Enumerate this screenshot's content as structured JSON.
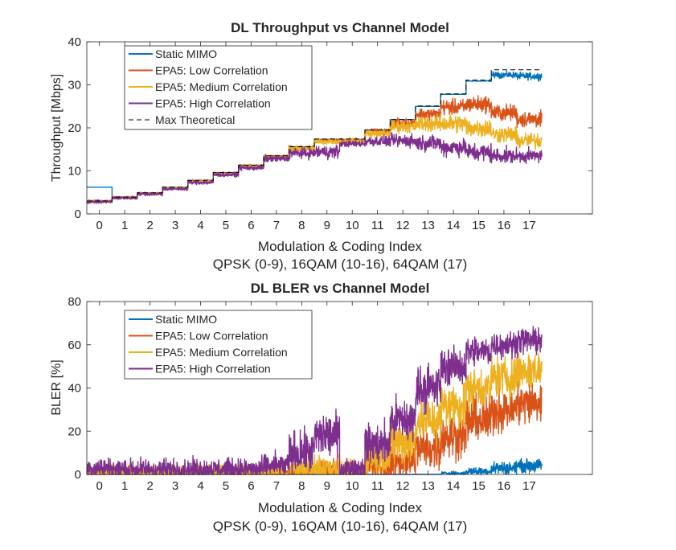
{
  "colors": {
    "static_mimo": "#0072BD",
    "low_corr": "#D95319",
    "medium_corr": "#EDB120",
    "high_corr": "#7E2F8E",
    "max_theoretical": "#000000"
  },
  "chart_data": [
    {
      "type": "line",
      "title": "DL Throughput vs Channel Model",
      "xlabel": "Modulation & Coding Index",
      "xlabel2": "QPSK (0-9), 16QAM (10-16), 64QAM (17)",
      "ylabel": "Throughput [Mbps]",
      "xlim": [
        -0.5,
        19.5
      ],
      "ylim": [
        0,
        40
      ],
      "xticks": [
        "0",
        "1",
        "2",
        "3",
        "4",
        "5",
        "6",
        "7",
        "8",
        "9",
        "10",
        "11",
        "12",
        "13",
        "14",
        "15",
        "16",
        "17"
      ],
      "yticks": [
        "0",
        "10",
        "20",
        "30",
        "40"
      ],
      "grid": false,
      "legend_position": "top-left",
      "series": [
        {
          "name": "Static MIMO",
          "color_key": "static_mimo",
          "mean": [
            6.2,
            3.9,
            4.9,
            6.2,
            7.8,
            9.6,
            11.3,
            13.5,
            15.6,
            17.3,
            17.3,
            19.5,
            21.9,
            25.0,
            27.8,
            30.9,
            32.3,
            32.0
          ],
          "noise": [
            0,
            0,
            0,
            0,
            0,
            0,
            0,
            0,
            0,
            0,
            0,
            0,
            0,
            0,
            0,
            0.1,
            0.6,
            0.7
          ]
        },
        {
          "name": "EPA5: Low Correlation",
          "color_key": "low_corr",
          "mean": [
            3.0,
            3.9,
            4.8,
            6.0,
            7.6,
            9.4,
            11.1,
            13.3,
            15.3,
            17.0,
            17.1,
            19.2,
            21.2,
            23.2,
            24.8,
            25.5,
            23.5,
            22.0
          ],
          "noise": [
            0.2,
            0.2,
            0.2,
            0.2,
            0.3,
            0.3,
            0.3,
            0.4,
            0.5,
            0.4,
            0.4,
            0.5,
            0.8,
            1.2,
            1.5,
            1.6,
            1.6,
            1.6
          ]
        },
        {
          "name": "EPA5: Medium Correlation",
          "color_key": "medium_corr",
          "mean": [
            2.9,
            3.8,
            4.7,
            5.9,
            7.5,
            9.3,
            11.0,
            13.2,
            15.1,
            16.8,
            16.9,
            18.7,
            20.3,
            21.0,
            21.0,
            20.0,
            18.5,
            17.0
          ],
          "noise": [
            0.2,
            0.2,
            0.2,
            0.3,
            0.3,
            0.3,
            0.4,
            0.4,
            0.6,
            0.5,
            0.5,
            0.8,
            1.2,
            1.6,
            1.8,
            1.8,
            1.6,
            1.6
          ]
        },
        {
          "name": "EPA5: High Correlation",
          "color_key": "high_corr",
          "mean": [
            2.8,
            3.7,
            4.6,
            5.8,
            7.3,
            9.1,
            10.7,
            12.8,
            14.1,
            14.4,
            16.3,
            16.9,
            17.0,
            16.5,
            15.5,
            14.3,
            13.5,
            13.5
          ],
          "noise": [
            0.3,
            0.3,
            0.3,
            0.3,
            0.4,
            0.4,
            0.5,
            0.6,
            1.0,
            1.3,
            0.6,
            1.0,
            1.3,
            1.5,
            1.7,
            1.8,
            1.5,
            1.3
          ]
        },
        {
          "name": "Max Theoretical",
          "color_key": "max_theoretical",
          "dashed": true,
          "mean": [
            3.0,
            3.9,
            4.9,
            6.2,
            7.8,
            9.6,
            11.3,
            13.5,
            15.6,
            17.4,
            17.4,
            19.5,
            21.9,
            25.1,
            27.9,
            31.1,
            33.5,
            33.5
          ],
          "noise": [
            0,
            0,
            0,
            0,
            0,
            0,
            0,
            0,
            0,
            0,
            0,
            0,
            0,
            0,
            0,
            0,
            0,
            0
          ]
        }
      ]
    },
    {
      "type": "line",
      "title": "DL BLER vs Channel Model",
      "xlabel": "Modulation & Coding Index",
      "xlabel2": "QPSK (0-9), 16QAM (10-16), 64QAM (17)",
      "ylabel": "BLER [%]",
      "xlim": [
        -0.5,
        19.5
      ],
      "ylim": [
        0,
        80
      ],
      "xticks": [
        "0",
        "1",
        "2",
        "3",
        "4",
        "5",
        "6",
        "7",
        "8",
        "9",
        "10",
        "11",
        "12",
        "13",
        "14",
        "15",
        "16",
        "17"
      ],
      "yticks": [
        "0",
        "20",
        "40",
        "60",
        "80"
      ],
      "grid": false,
      "legend_position": "top-left",
      "series": [
        {
          "name": "Static MIMO",
          "color_key": "static_mimo",
          "mean": [
            0,
            0,
            0,
            0,
            0,
            0,
            0,
            0,
            0,
            0,
            0,
            0,
            0,
            0,
            0.5,
            1.5,
            3.0,
            4.0
          ],
          "noise": [
            0,
            0,
            0,
            0,
            0,
            0,
            0,
            0,
            0,
            0,
            0,
            0,
            0,
            0,
            0.8,
            1.5,
            2.5,
            2.5
          ]
        },
        {
          "name": "EPA5: Low Correlation",
          "color_key": "low_corr",
          "mean": [
            0.5,
            0.5,
            0.5,
            0.5,
            0.5,
            0.5,
            0.5,
            0.5,
            1.0,
            2.0,
            1.0,
            3.0,
            6.0,
            12.0,
            18.0,
            25.0,
            30.0,
            33.0
          ],
          "noise": [
            2,
            2,
            2,
            2,
            2,
            2,
            2,
            2,
            3,
            4,
            3,
            5,
            7,
            8,
            9,
            9,
            9,
            9
          ]
        },
        {
          "name": "EPA5: Medium Correlation",
          "color_key": "medium_corr",
          "mean": [
            1.0,
            1.0,
            1.0,
            1.0,
            1.0,
            1.0,
            1.0,
            1.0,
            2.0,
            3.0,
            2.0,
            8.0,
            15.0,
            25.0,
            32.0,
            40.0,
            45.0,
            48.0
          ],
          "noise": [
            3,
            3,
            3,
            3,
            3,
            3,
            3,
            3,
            4,
            5,
            4,
            7,
            9,
            9,
            9,
            8,
            8,
            8
          ]
        },
        {
          "name": "EPA5: High Correlation",
          "color_key": "high_corr",
          "mean": [
            3.0,
            2.5,
            2.5,
            2.5,
            2.5,
            2.5,
            2.5,
            4.0,
            10.0,
            18.0,
            3.0,
            14.0,
            25.0,
            40.0,
            50.0,
            57.0,
            60.0,
            62.0
          ],
          "noise": [
            4,
            4,
            4,
            4,
            4,
            4,
            4,
            5,
            8,
            9,
            4,
            8,
            9,
            9,
            7,
            6,
            5,
            5
          ]
        }
      ]
    }
  ]
}
